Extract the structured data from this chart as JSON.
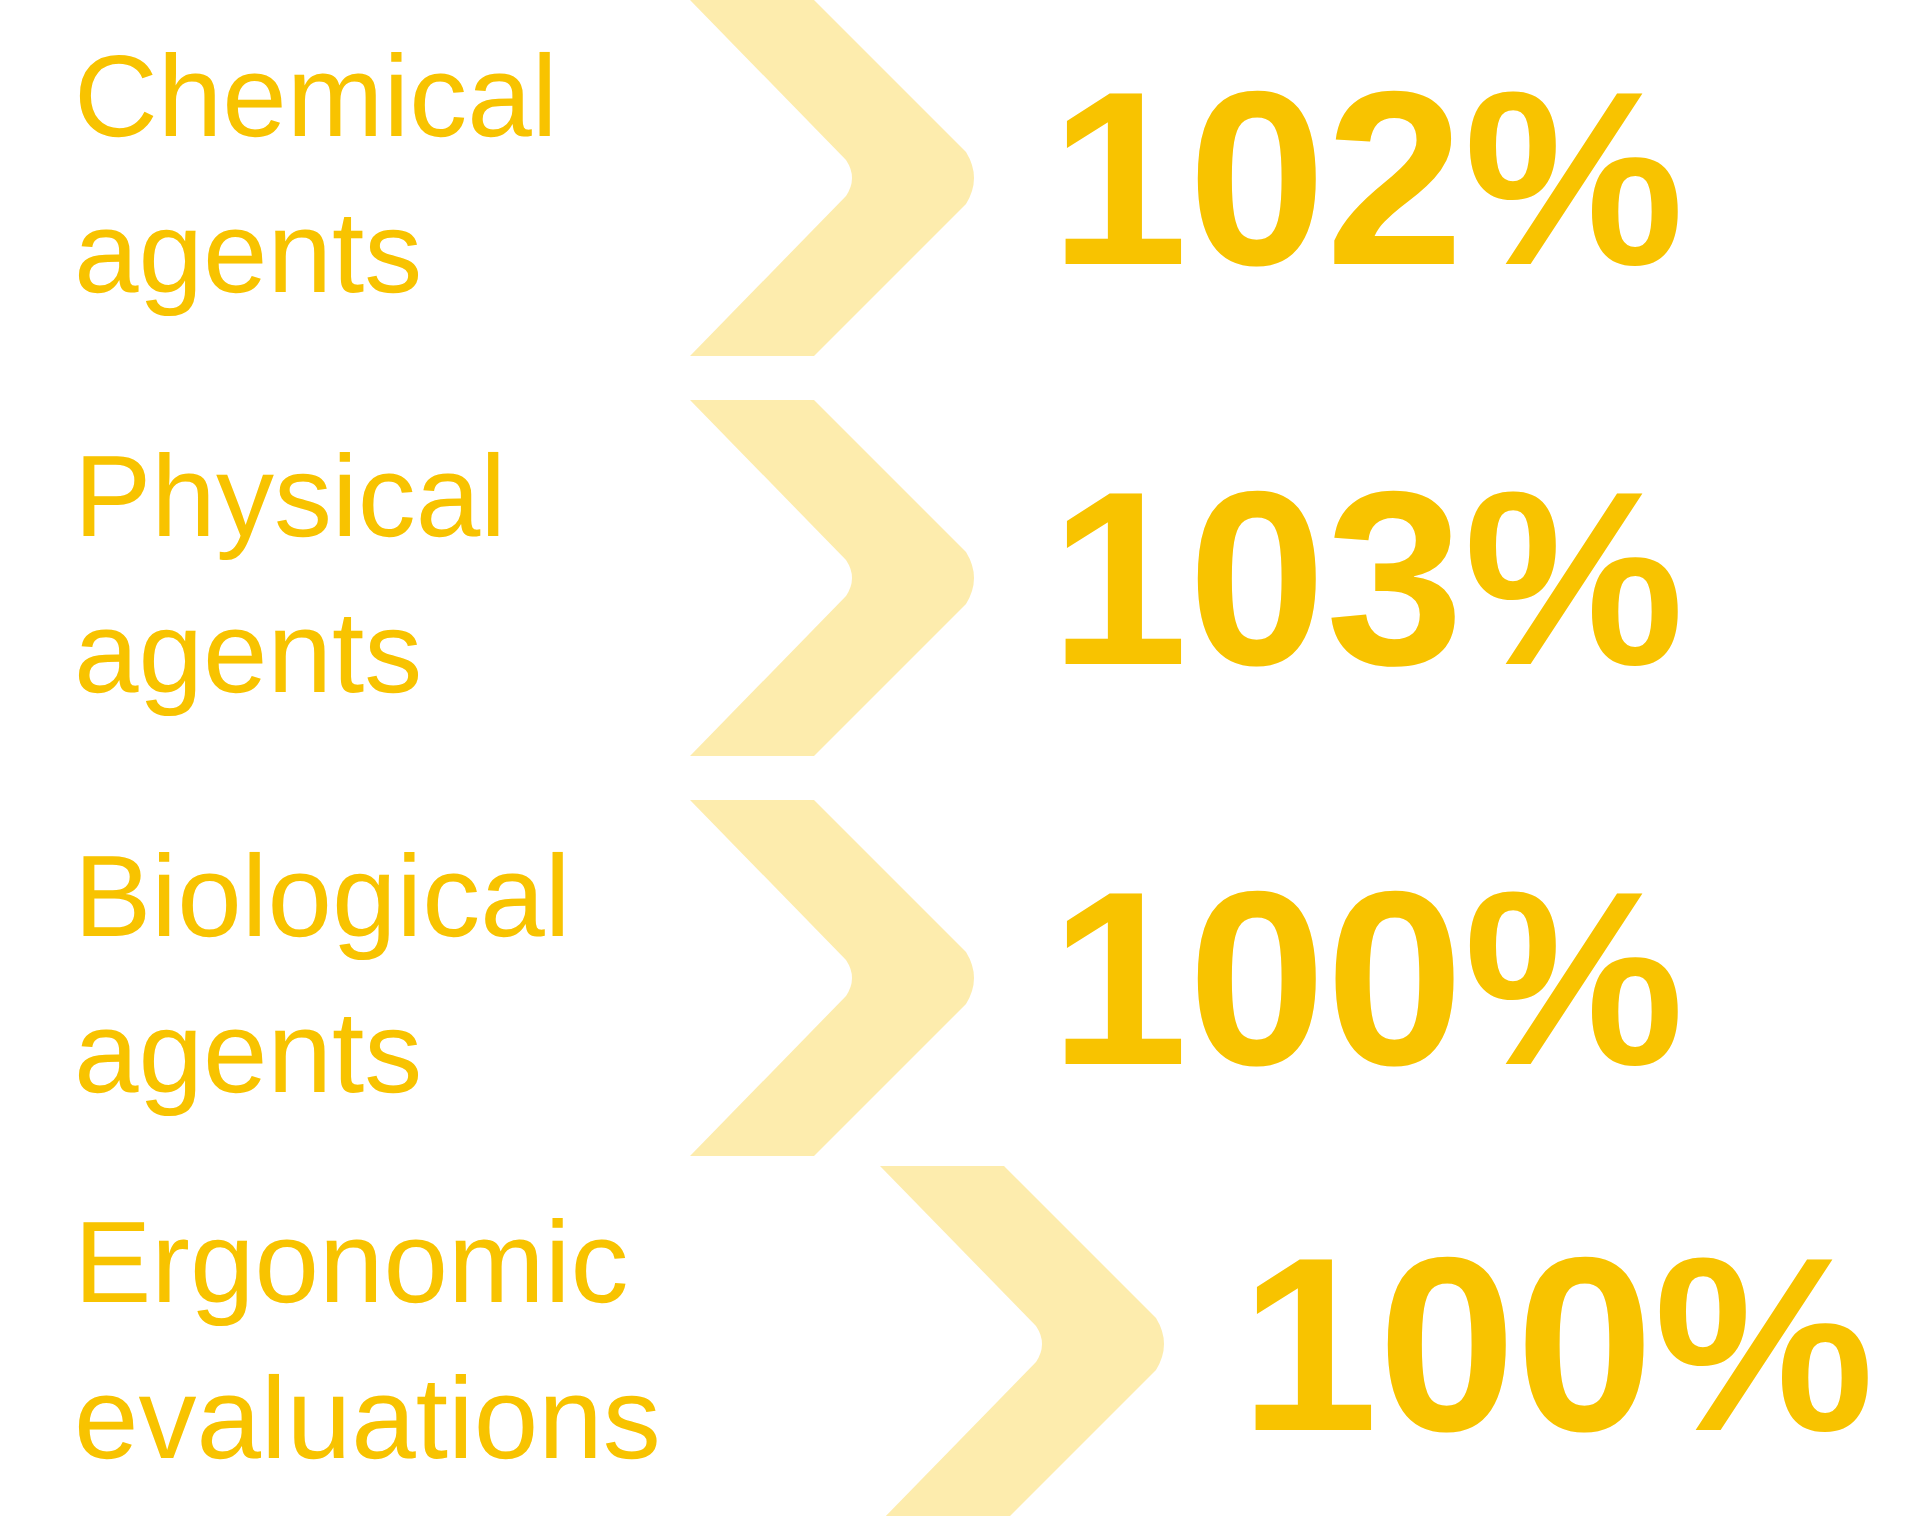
{
  "chart_data": {
    "type": "other",
    "categories": [
      "Chemical agents",
      "Physical agents",
      "Biological agents",
      "Ergonomic evaluations"
    ],
    "values": [
      102,
      103,
      100,
      100
    ],
    "value_labels": [
      "102%",
      "103%",
      "100%",
      "100%"
    ],
    "color": "#f8c300"
  }
}
